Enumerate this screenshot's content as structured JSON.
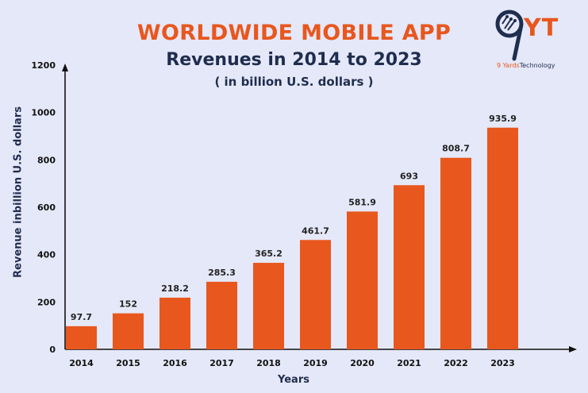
{
  "title": "WORLDWIDE MOBILE APP",
  "subtitle": "Revenues in 2014 to 2023",
  "unit_note": "( in billion U.S. dollars )",
  "logo": {
    "mark": "YT",
    "brand_prefix": "9 Yards",
    "brand_suffix": "Technology",
    "icon": "nine-pin-logo-icon"
  },
  "colors": {
    "bar": "#e8571e",
    "title_accent": "#e8571e",
    "text_dark": "#1f2d4e",
    "background": "#e5e8f8"
  },
  "chart_data": {
    "type": "bar",
    "categories": [
      "2014",
      "2015",
      "2016",
      "2017",
      "2018",
      "2019",
      "2020",
      "2021",
      "2022",
      "2023"
    ],
    "values": [
      97.7,
      152,
      218.2,
      285.3,
      365.2,
      461.7,
      581.9,
      693,
      808.7,
      935.9
    ],
    "value_labels": [
      "97.7",
      "152",
      "218.2",
      "285.3",
      "365.2",
      "461.7",
      "581.9",
      "693",
      "808.7",
      "935.9"
    ],
    "xlabel": "Years",
    "ylabel": "Revenue inbillion U.S. dollars",
    "yticks": [
      "0",
      "200",
      "400",
      "600",
      "800",
      "1000",
      "1200"
    ],
    "ylim": [
      0,
      1200
    ],
    "grid": false,
    "legend": "none"
  }
}
